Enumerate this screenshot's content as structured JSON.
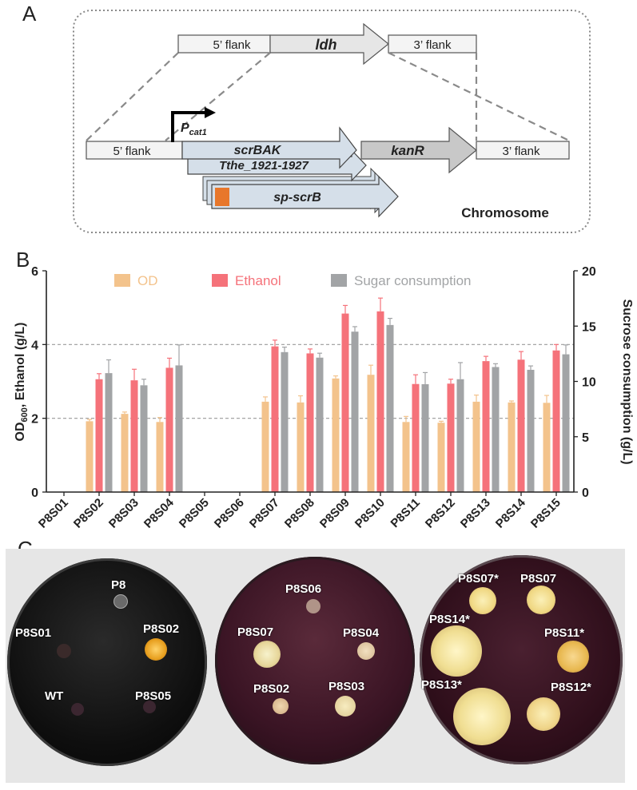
{
  "panel_a": {
    "letter": "A",
    "flank5": "5’ flank",
    "flank3": "3’ flank",
    "ldh": "ldh",
    "promoter": "P",
    "promoter_sub": "cat1",
    "scrBAK": "scrBAK",
    "tthe": "Tthe_1921-1927",
    "sp_scrB": "sp-scrB",
    "kanR": "kanR",
    "chromosome": "Chromosome"
  },
  "panel_b": {
    "letter": "B"
  },
  "chart_data": {
    "type": "bar",
    "categories": [
      "P8S01",
      "P8S02",
      "P8S03",
      "P8S04",
      "P8S05",
      "P8S06",
      "P8S07",
      "P8S08",
      "P8S09",
      "P8S10",
      "P8S11",
      "P8S12",
      "P8S13",
      "P8S14",
      "P8S15"
    ],
    "series": [
      {
        "name": "OD",
        "axis": "left",
        "color": "#f3c38c",
        "values": [
          0,
          1.92,
          2.12,
          1.9,
          0,
          0,
          2.45,
          2.43,
          3.08,
          3.18,
          1.9,
          1.88,
          2.45,
          2.43,
          2.42
        ],
        "errors": [
          0,
          0.05,
          0.05,
          0.12,
          0,
          0,
          0.13,
          0.18,
          0.07,
          0.26,
          0.15,
          0.04,
          0.18,
          0.04,
          0.2
        ]
      },
      {
        "name": "Ethanol",
        "axis": "left",
        "color": "#f5727a",
        "values": [
          0,
          3.06,
          3.03,
          3.37,
          0,
          0,
          3.95,
          3.76,
          4.84,
          4.9,
          2.93,
          2.94,
          3.55,
          3.59,
          3.84
        ],
        "errors": [
          0,
          0.15,
          0.3,
          0.26,
          0,
          0,
          0.17,
          0.12,
          0.22,
          0.36,
          0.25,
          0.12,
          0.13,
          0.22,
          0.16
        ]
      },
      {
        "name": "Sugar consumption",
        "axis": "right",
        "color": "#a2a4a6",
        "values": [
          0,
          10.75,
          9.65,
          11.45,
          0,
          0,
          12.65,
          12.15,
          14.5,
          15.1,
          9.75,
          10.2,
          11.3,
          11.05,
          12.45
        ],
        "errors": [
          0,
          1.2,
          0.55,
          1.85,
          0,
          0,
          0.45,
          0.4,
          0.45,
          0.6,
          1.05,
          1.5,
          0.3,
          0.35,
          0.85
        ]
      }
    ],
    "ylabel_left_main": "OD",
    "ylabel_left_sub": "600",
    "ylabel_left_rest": ", Ethanol (g/L)",
    "ylabel_right": "Sucrose consumption (g/L)",
    "ylim_left": [
      0,
      6
    ],
    "ylim_right": [
      0,
      20
    ],
    "yticks_left": [
      "0",
      "2",
      "4",
      "6"
    ],
    "yticks_right": [
      "0",
      "5",
      "10",
      "15",
      "20"
    ],
    "dashed_gridlines_left": [
      2,
      4
    ],
    "legend": [
      "OD",
      "Ethanol",
      "Sugar consumption"
    ],
    "legend_position": "top"
  },
  "panel_c": {
    "letter": "C",
    "plate1": [
      "P8",
      "P8S01",
      "P8S02",
      "WT",
      "P8S05"
    ],
    "plate2": [
      "P8S06",
      "P8S07",
      "P8S04",
      "P8S02",
      "P8S03"
    ],
    "plate3": [
      "P8S07*",
      "P8S07",
      "P8S14*",
      "P8S11*",
      "P8S13*",
      "P8S12*"
    ]
  }
}
